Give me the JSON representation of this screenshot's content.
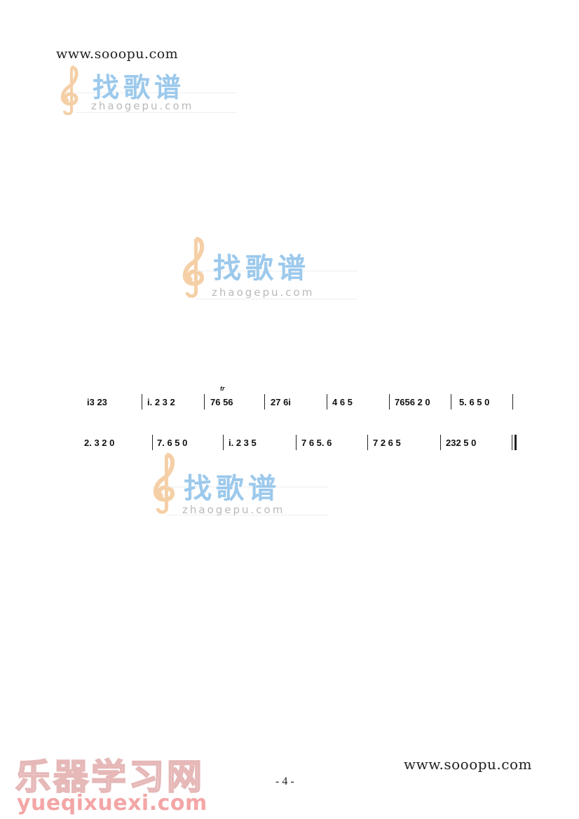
{
  "header": {
    "site_url": "www.sooopu.com"
  },
  "watermarks": [
    {
      "chinese": "找歌谱",
      "latin": "zhaogepu.com"
    },
    {
      "chinese": "找歌谱",
      "latin": "zhaogepu.com"
    },
    {
      "chinese": "找歌谱",
      "latin": "zhaogepu.com"
    }
  ],
  "score": {
    "row1": [
      {
        "notes": "i3 23"
      },
      {
        "notes": "i. 2 3 2"
      },
      {
        "ornament": "tr",
        "notes": "76 56"
      },
      {
        "notes": "27 6i"
      },
      {
        "notes": "4 6 5"
      },
      {
        "notes": "7656 2 0"
      },
      {
        "notes": "5. 6 5 0"
      }
    ],
    "row2": [
      {
        "notes": "2. 3 2 0"
      },
      {
        "notes": "7. 6 5 0"
      },
      {
        "notes": "i. 2 3 5"
      },
      {
        "notes": "7 6 5. 6"
      },
      {
        "notes": "7 2 6 5"
      },
      {
        "notes": "232 5 0"
      }
    ]
  },
  "footer": {
    "page_number": "- 4 -",
    "site_url": "www.sooopu.com",
    "badge_chinese": "乐器学习网",
    "badge_latin": "yueqixuexi.com"
  }
}
